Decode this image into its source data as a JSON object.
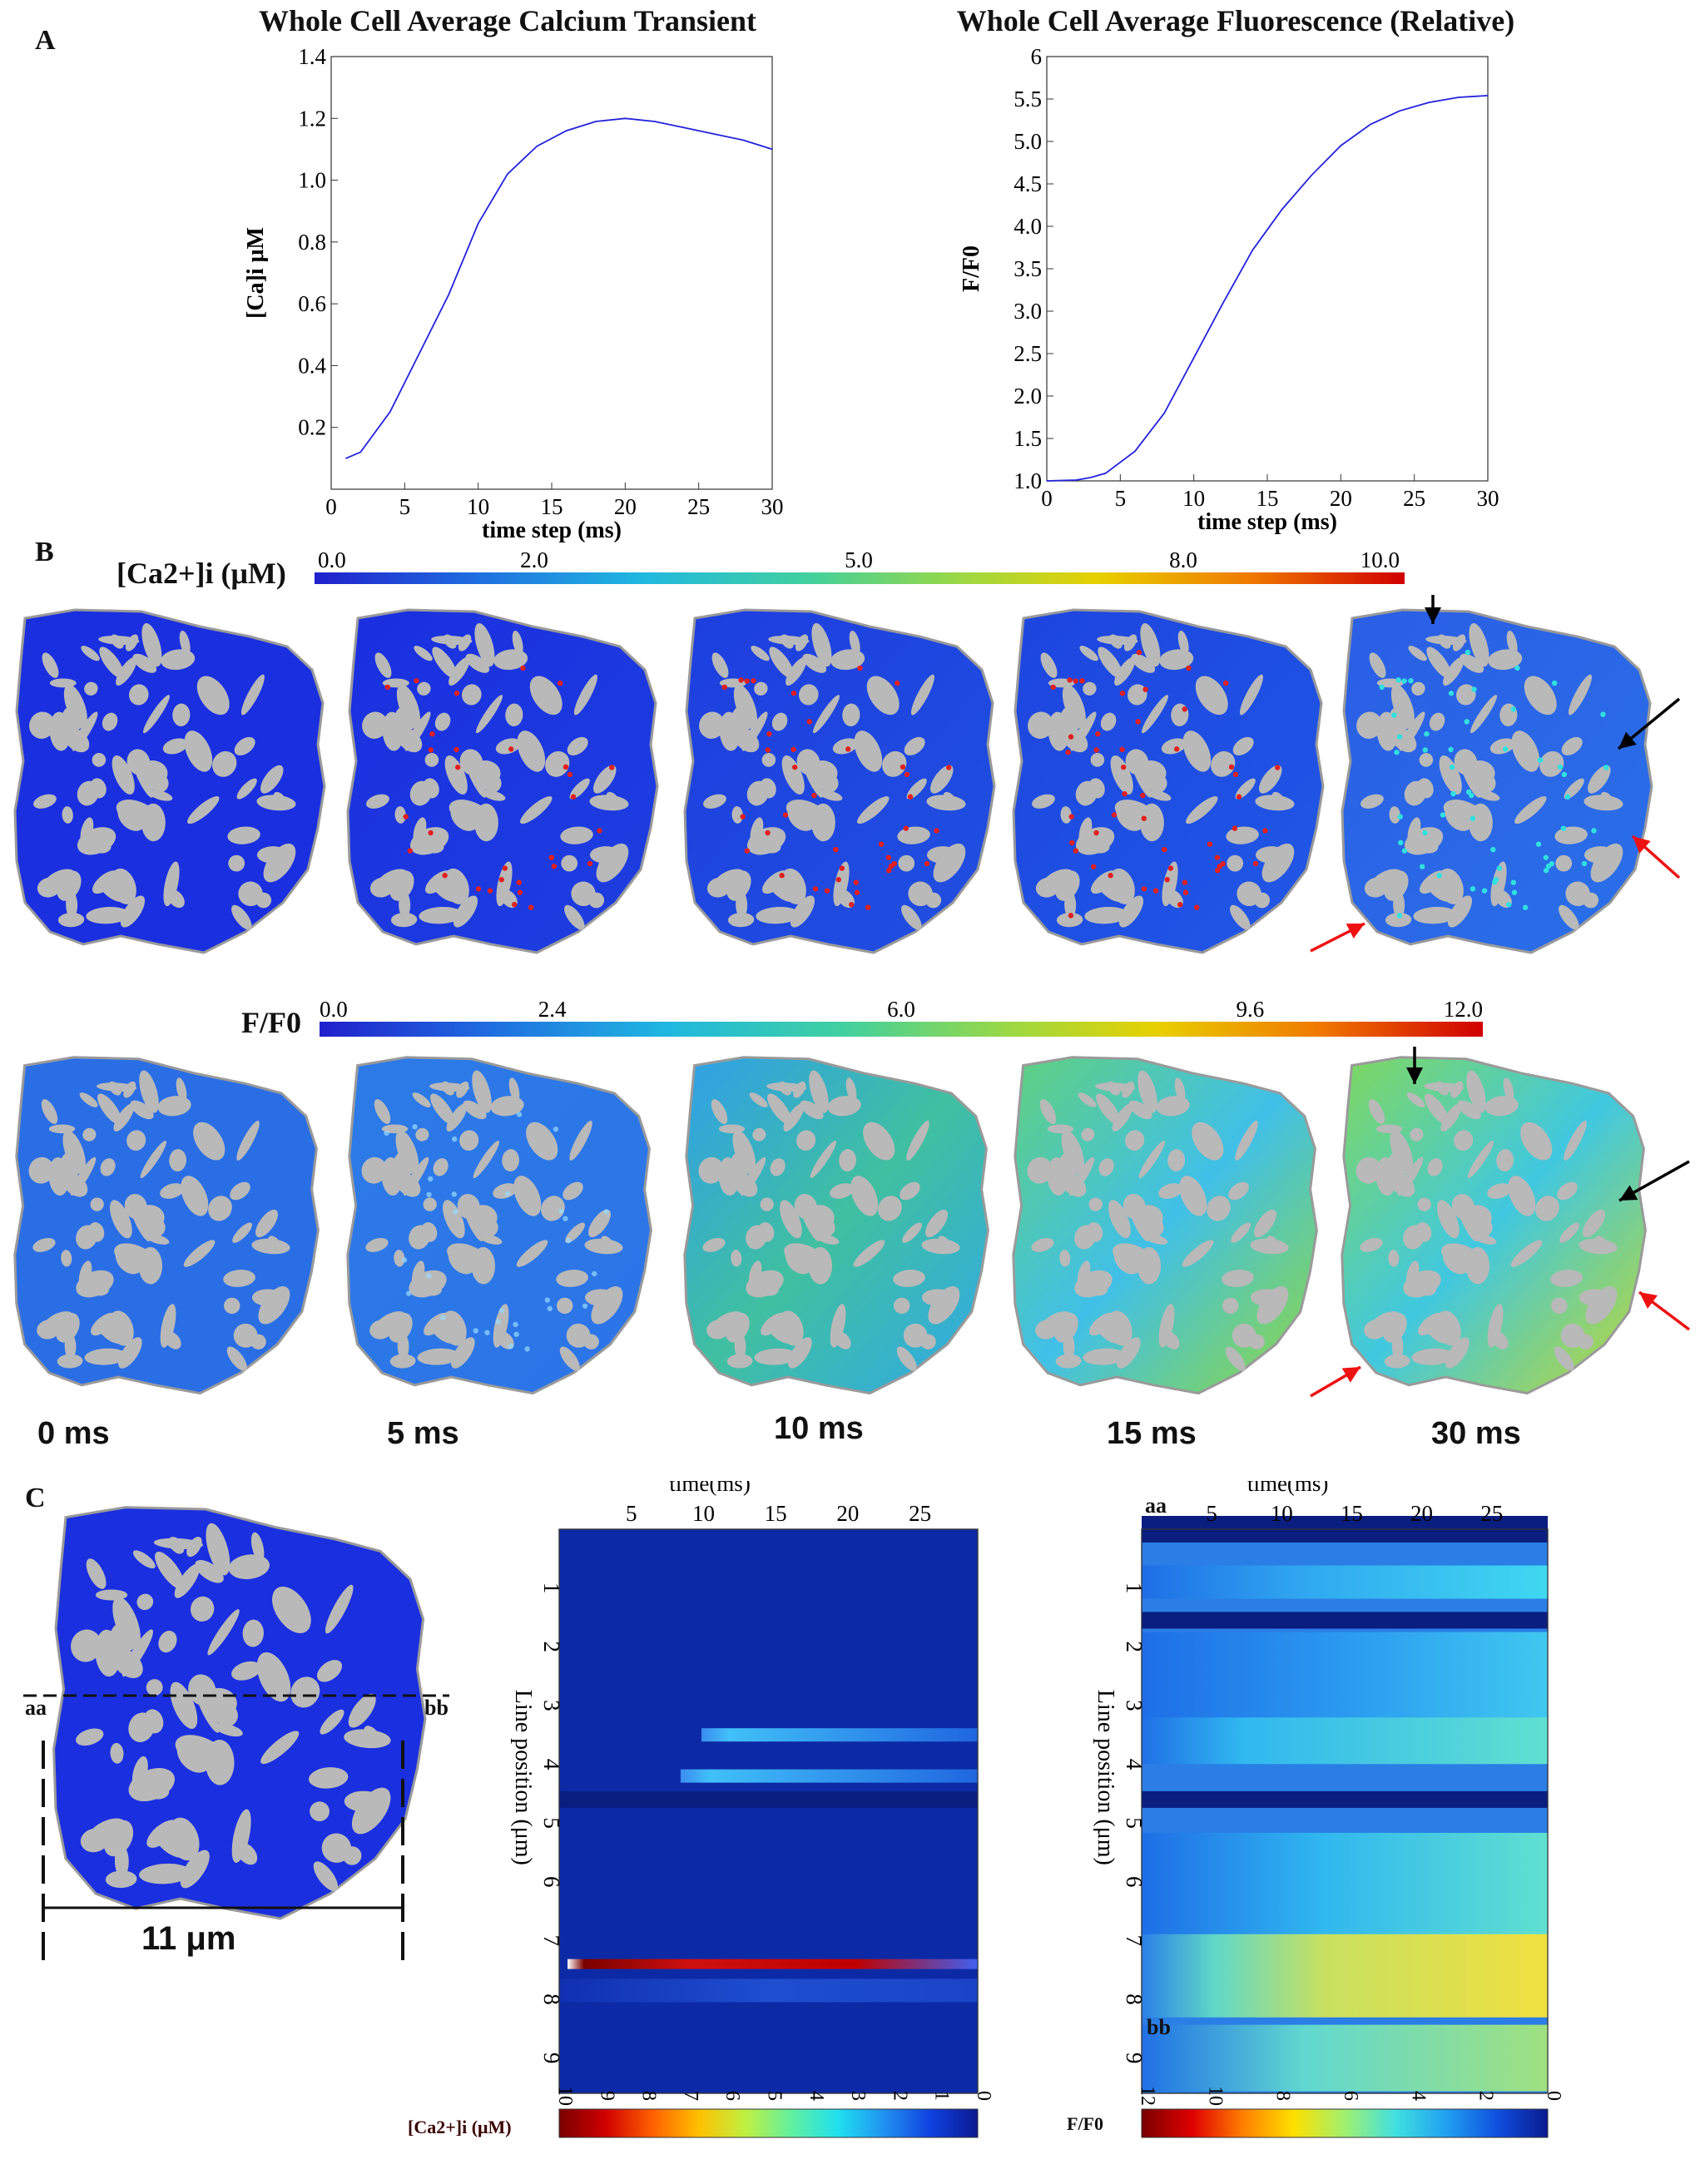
{
  "panel_labels": {
    "a": "A",
    "b": "B",
    "c": "C"
  },
  "chart_data": [
    {
      "type": "line",
      "title": "Whole Cell Average Calcium Transient",
      "xlabel": "time step (ms)",
      "ylabel": "[Ca]i μM",
      "xlim": [
        0,
        30
      ],
      "ylim": [
        0,
        1.4
      ],
      "xticks": [
        "0",
        "5",
        "10",
        "15",
        "20",
        "25",
        "30"
      ],
      "yticks": [
        "0.2",
        "0.4",
        "0.6",
        "0.8",
        "1.0",
        "1.2",
        "1.4"
      ],
      "series": [
        {
          "color": "#2222dd",
          "x": [
            1,
            2,
            4,
            6,
            8,
            10,
            12,
            14,
            16,
            18,
            20,
            22,
            24,
            26,
            28,
            30
          ],
          "y": [
            0.1,
            0.12,
            0.25,
            0.44,
            0.63,
            0.86,
            1.02,
            1.11,
            1.16,
            1.19,
            1.2,
            1.19,
            1.17,
            1.15,
            1.13,
            1.1
          ]
        }
      ]
    },
    {
      "type": "line",
      "title": "Whole Cell Average Fluorescence (Relative)",
      "xlabel": "time step (ms)",
      "ylabel": "F/F0",
      "xlim": [
        0,
        30
      ],
      "ylim": [
        1.0,
        6.0
      ],
      "xticks": [
        "0",
        "5",
        "10",
        "15",
        "20",
        "25",
        "30"
      ],
      "yticks": [
        "1.0",
        "1.5",
        "2.0",
        "2.5",
        "3.0",
        "3.5",
        "4.0",
        "4.5",
        "5.0",
        "5.5",
        "6"
      ],
      "series": [
        {
          "color": "#2222dd",
          "x": [
            0,
            2,
            3,
            4,
            6,
            8,
            10,
            12,
            14,
            16,
            18,
            20,
            22,
            24,
            26,
            28,
            30
          ],
          "y": [
            1.0,
            1.01,
            1.04,
            1.09,
            1.35,
            1.8,
            2.45,
            3.1,
            3.72,
            4.2,
            4.6,
            4.95,
            5.2,
            5.36,
            5.46,
            5.52,
            5.54
          ]
        }
      ]
    },
    {
      "type": "heatmap",
      "title": "",
      "xlabel": "time(ms)",
      "ylabel": "Line position (μm)",
      "xticks": [
        "5",
        "10",
        "15",
        "20",
        "25"
      ],
      "yticks": [
        "1",
        "2",
        "3",
        "4",
        "5",
        "6",
        "7",
        "8",
        "9"
      ],
      "colorbar_label": "[Ca2+]i (μM)",
      "colorbar_ticks": [
        "10",
        "9",
        "8",
        "7",
        "6",
        "5",
        "4",
        "3",
        "2",
        "1",
        "0"
      ],
      "features": [
        {
          "position": 3.5,
          "onset_ms": 10,
          "intensity": "moderate"
        },
        {
          "position": 4.2,
          "onset_ms": 8.5,
          "intensity": "moderate"
        },
        {
          "position": 4.6,
          "onset_ms": 0,
          "intensity": "low"
        },
        {
          "position": 7.4,
          "onset_ms": 0,
          "intensity": "high"
        }
      ]
    },
    {
      "type": "heatmap",
      "title": "",
      "xlabel": "time(ms)",
      "ylabel": "Line position (μm)",
      "xticks": [
        "5",
        "10",
        "15",
        "20",
        "25"
      ],
      "yticks": [
        "1",
        "2",
        "3",
        "4",
        "5",
        "6",
        "7",
        "8",
        "9"
      ],
      "colorbar_label": "F/F0",
      "colorbar_ticks": [
        "12",
        "10",
        "8",
        "6",
        "4",
        "2",
        "0"
      ],
      "top_label": "aa",
      "bottom_label": "bb"
    }
  ],
  "colorbars": {
    "ca": {
      "label": "[Ca2+]i (μM)",
      "ticks": [
        "0.0",
        "2.0",
        "5.0",
        "8.0",
        "10.0"
      ]
    },
    "ff0": {
      "label": "F/F0",
      "ticks": [
        "0.0",
        "2.4",
        "6.0",
        "9.6",
        "12.0"
      ]
    }
  },
  "time_labels": [
    "0 ms",
    "5 ms",
    "10 ms",
    "15 ms",
    "30 ms"
  ],
  "panel_c": {
    "aa": "aa",
    "bb": "bb",
    "width_label": "11 μm"
  },
  "colors": {
    "cell_blue": "#1f35d8",
    "organelle_gray": "#b9b9b9",
    "arrow_red": "#ee1111",
    "arrow_black": "#000000"
  }
}
